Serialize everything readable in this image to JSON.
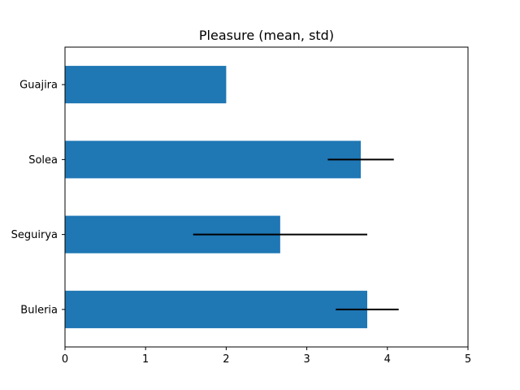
{
  "chart_data": {
    "type": "bar",
    "orientation": "horizontal",
    "title": "Pleasure (mean, std)",
    "xlabel": "",
    "ylabel": "",
    "xlim": [
      0,
      5
    ],
    "x_ticks": [
      "0",
      "1",
      "2",
      "3",
      "4",
      "5"
    ],
    "categories": [
      "Guajira",
      "Solea",
      "Seguirya",
      "Buleria"
    ],
    "values": [
      2.0,
      3.67,
      2.67,
      3.75
    ],
    "error": [
      0.0,
      0.41,
      1.08,
      0.39
    ],
    "grid": false,
    "bar_color": "#1f77b4",
    "error_color": "#000000"
  }
}
